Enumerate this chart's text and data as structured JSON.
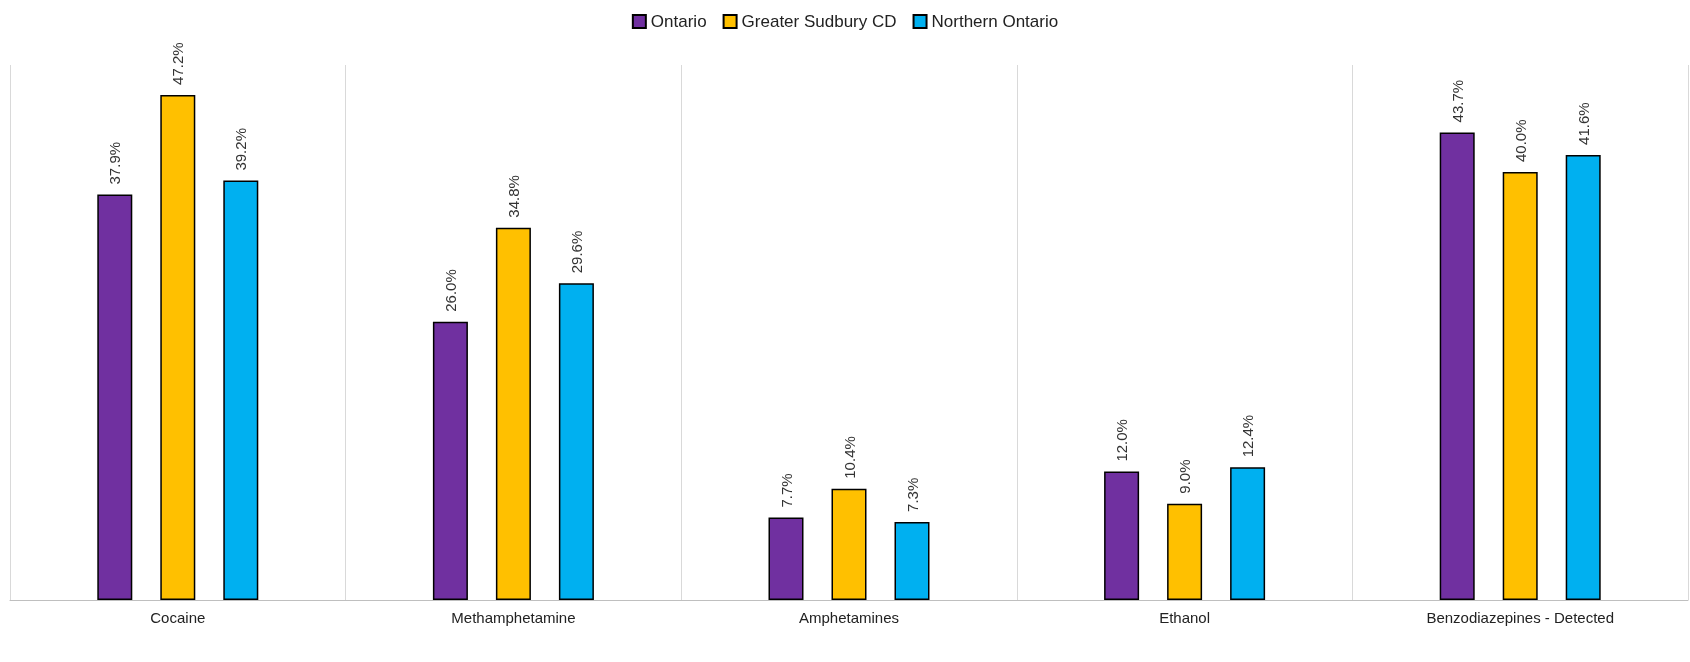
{
  "chart_data": {
    "type": "bar",
    "categories": [
      "Cocaine",
      "Methamphetamine",
      "Amphetamines",
      "Ethanol",
      "Benzodiazepines - Detected"
    ],
    "series": [
      {
        "name": "Ontario",
        "color": "#7030a0",
        "values": [
          37.9,
          26.0,
          7.7,
          12.0,
          43.7
        ],
        "value_labels": [
          "37.9%",
          "26.0%",
          "7.7%",
          "12.0%",
          "43.7%"
        ]
      },
      {
        "name": "Greater Sudbury CD",
        "color": "#ffc000",
        "values": [
          47.2,
          34.8,
          10.4,
          9.0,
          40.0
        ],
        "value_labels": [
          "47.2%",
          "34.8%",
          "10.4%",
          "9.0%",
          "40.0%"
        ]
      },
      {
        "name": "Northern Ontario",
        "color": "#00b0f0",
        "values": [
          39.2,
          29.6,
          7.3,
          12.4,
          41.6
        ],
        "value_labels": [
          "39.2%",
          "29.6%",
          "7.3%",
          "12.4%",
          "41.6%"
        ]
      }
    ],
    "grid": "x",
    "legend": "top"
  }
}
